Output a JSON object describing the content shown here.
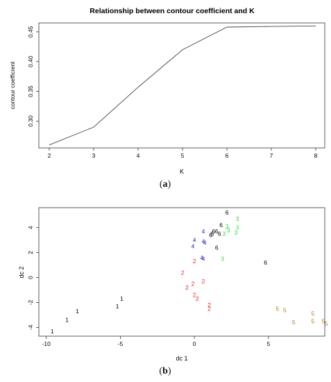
{
  "chart_data": [
    {
      "type": "line",
      "title": "Relationship between contour coefficient and K",
      "xlabel": "K",
      "ylabel": "contour coefficient",
      "xlim": [
        2,
        8
      ],
      "ylim": [
        0.255,
        0.465
      ],
      "x_ticks": [
        "2",
        "3",
        "4",
        "5",
        "6",
        "7",
        "8"
      ],
      "y_ticks": [
        "0.30",
        "0.35",
        "0.40",
        "0.45"
      ],
      "x": [
        2,
        3,
        4,
        5,
        6,
        7,
        8
      ],
      "y": [
        0.26,
        0.29,
        0.357,
        0.42,
        0.458,
        0.459,
        0.46
      ],
      "grid": false,
      "caption_letter": "a"
    },
    {
      "type": "scatter",
      "xlabel": "dc 1",
      "ylabel": "dc 2",
      "xlim": [
        -10.5,
        8.8
      ],
      "ylim": [
        -4.7,
        5.6
      ],
      "x_ticks": [
        "-10",
        "-5",
        "0",
        "5"
      ],
      "y_ticks": [
        "-4",
        "-2",
        "0",
        "2",
        "4"
      ],
      "grid": false,
      "caption_letter": "b",
      "series": [
        {
          "name": "1",
          "color": "#000000",
          "points": [
            [
              -9.6,
              -4.3
            ],
            [
              -8.6,
              -3.4
            ],
            [
              -7.9,
              -2.7
            ],
            [
              -5.2,
              -2.3
            ],
            [
              -4.9,
              -1.7
            ]
          ]
        },
        {
          "name": "2",
          "color": "#e8271d",
          "points": [
            [
              0.0,
              1.3
            ],
            [
              -0.8,
              0.4
            ],
            [
              0.6,
              -0.3
            ],
            [
              -0.1,
              -0.5
            ],
            [
              -0.5,
              -0.8
            ],
            [
              0.0,
              -1.4
            ],
            [
              0.2,
              -1.7
            ],
            [
              1.0,
              -2.2
            ],
            [
              1.0,
              -2.5
            ]
          ]
        },
        {
          "name": "3",
          "color": "#2ede2e",
          "points": [
            [
              2.9,
              4.7
            ],
            [
              2.2,
              4.1
            ],
            [
              2.9,
              4.0
            ],
            [
              2.3,
              3.8
            ],
            [
              2.8,
              3.6
            ],
            [
              2.0,
              3.5
            ],
            [
              1.9,
              1.5
            ]
          ]
        },
        {
          "name": "4",
          "color": "#1f1fcf",
          "points": [
            [
              0.6,
              3.7
            ],
            [
              0.0,
              3.0
            ],
            [
              0.6,
              2.9
            ],
            [
              0.7,
              2.8
            ],
            [
              -0.1,
              2.5
            ],
            [
              0.5,
              1.6
            ],
            [
              0.6,
              1.5
            ]
          ]
        },
        {
          "name": "5",
          "color": "#b07a28",
          "points": [
            [
              5.6,
              -2.5
            ],
            [
              6.1,
              -2.6
            ],
            [
              8.0,
              -2.9
            ],
            [
              6.7,
              -3.6
            ],
            [
              8.0,
              -3.5
            ],
            [
              8.7,
              -3.5
            ],
            [
              8.9,
              -3.7
            ]
          ]
        },
        {
          "name": "6",
          "color": "#000000",
          "points": [
            [
              2.2,
              5.2
            ],
            [
              1.8,
              4.2
            ],
            [
              1.3,
              3.7
            ],
            [
              1.5,
              3.7
            ],
            [
              1.2,
              3.5
            ],
            [
              1.7,
              3.5
            ],
            [
              1.1,
              3.4
            ],
            [
              1.5,
              2.4
            ],
            [
              4.8,
              1.2
            ]
          ]
        }
      ]
    }
  ]
}
